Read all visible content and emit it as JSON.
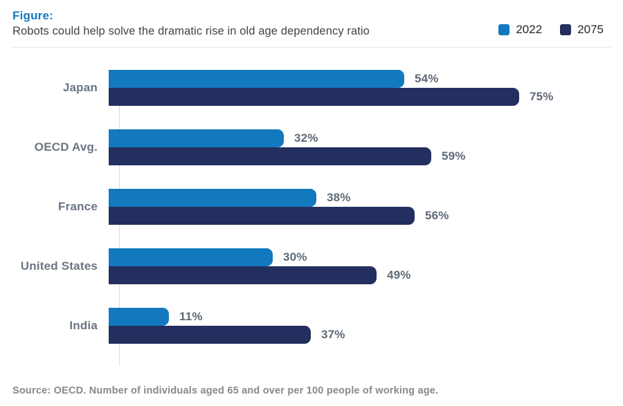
{
  "header": {
    "figure_label": "Figure:",
    "title": "Robots could help solve the dramatic rise in old age dependency ratio"
  },
  "chart_data": {
    "type": "bar",
    "orientation": "horizontal",
    "title": "Robots could help solve the dramatic rise in old age dependency ratio",
    "categories": [
      "Japan",
      "OECD Avg.",
      "France",
      "United States",
      "India"
    ],
    "series": [
      {
        "name": "2022",
        "color": "#1279bf",
        "values": [
          54,
          32,
          38,
          30,
          11
        ]
      },
      {
        "name": "2075",
        "color": "#232f5e",
        "values": [
          75,
          59,
          56,
          49,
          37
        ]
      }
    ],
    "value_suffix": "%",
    "xlim": [
      0,
      100
    ],
    "grid": false,
    "legend_position": "top-right",
    "data_labels": true
  },
  "source": "Source: OECD. Number of individuals aged 65 and over per 100 people of working age."
}
